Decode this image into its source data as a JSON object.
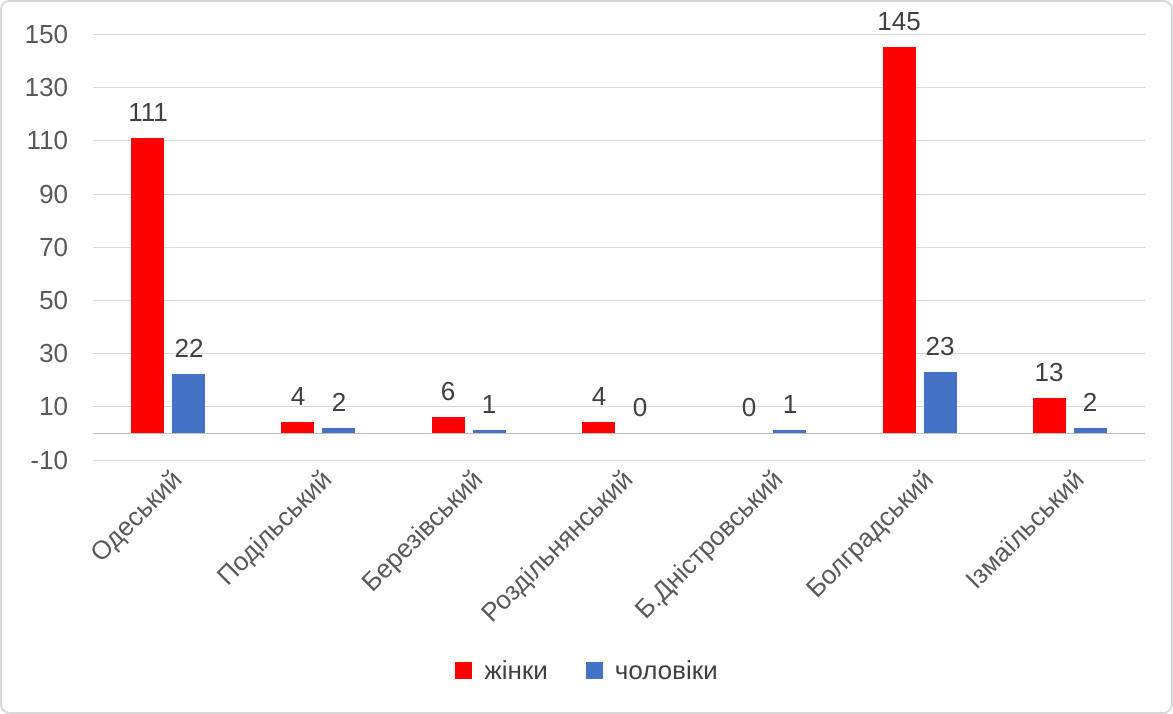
{
  "chart_data": {
    "type": "bar",
    "title": "",
    "xlabel": "",
    "ylabel": "",
    "categories": [
      "Одеський",
      "Подільський",
      "Березівський",
      "Роздільнянський",
      "Б.Дністровський",
      "Болградський",
      "Ізмаїльський"
    ],
    "series": [
      {
        "name": "жінки",
        "color": "#ff0000",
        "values": [
          111,
          4,
          6,
          4,
          0,
          145,
          13
        ]
      },
      {
        "name": "чоловіки",
        "color": "#4472c4",
        "values": [
          22,
          2,
          1,
          0,
          1,
          23,
          2
        ]
      }
    ],
    "ylim": [
      -10,
      150
    ],
    "ytick_step": 20,
    "yticks": [
      150,
      130,
      110,
      90,
      70,
      50,
      30,
      10,
      -10
    ],
    "grid": true,
    "data_labels": true,
    "legend_position": "bottom"
  },
  "colors": {
    "background": "#ffffff",
    "frame_border": "#d9d9d9",
    "gridline": "#d9d9d9",
    "axis_line": "#bfbfbf",
    "tick_text": "#595959",
    "label_text": "#404040",
    "series_women": "#ff0000",
    "series_men": "#4472c4"
  }
}
